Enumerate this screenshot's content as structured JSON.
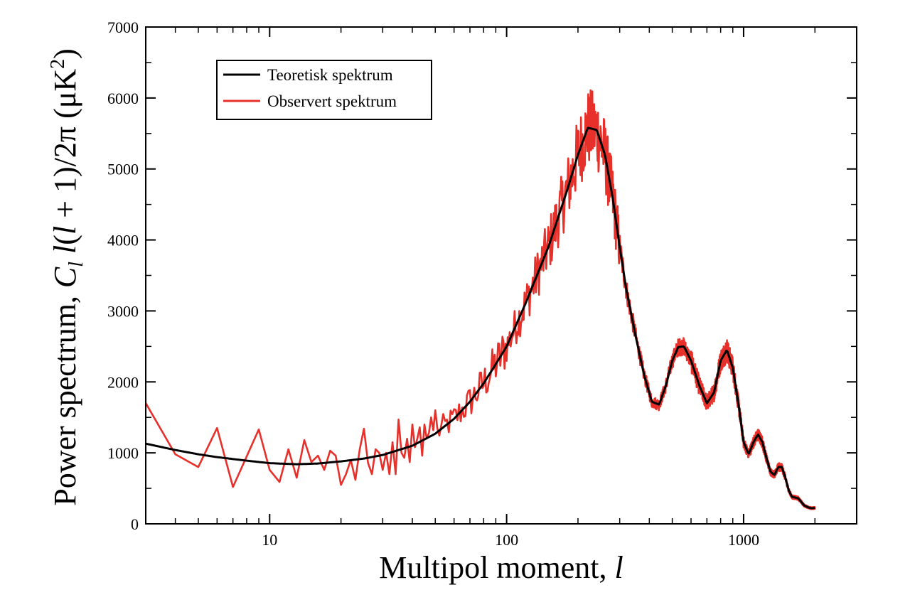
{
  "chart_data": {
    "type": "line",
    "xscale": "log",
    "xlim": [
      3,
      3000
    ],
    "ylim": [
      0,
      7000
    ],
    "xticks": [
      {
        "value": 10,
        "label": "10"
      },
      {
        "value": 100,
        "label": "100"
      },
      {
        "value": 1000,
        "label": "1000"
      }
    ],
    "yticks": [
      {
        "value": 0,
        "label": "0"
      },
      {
        "value": 1000,
        "label": "1000"
      },
      {
        "value": 2000,
        "label": "2000"
      },
      {
        "value": 3000,
        "label": "3000"
      },
      {
        "value": 4000,
        "label": "4000"
      },
      {
        "value": 5000,
        "label": "5000"
      },
      {
        "value": 6000,
        "label": "6000"
      },
      {
        "value": 7000,
        "label": "7000"
      }
    ],
    "xlabel": "Multipol moment, l",
    "xlabel_parts": {
      "text": "Multipol moment, ",
      "italic": "l"
    },
    "ylabel": "Power spectrum, C_l l(l + 1)/2π (μK²)",
    "ylabel_parts": {
      "lead": "Power spectrum, ",
      "C": "C",
      "sub": "l",
      "mid1": "l",
      "mid2": "(",
      "mid3": "l",
      "tail": " + 1)/2π (μK",
      "sup": "2",
      "close": ")"
    },
    "legend_position": "top-left",
    "grid": false,
    "series": [
      {
        "name": "Teoretisk spektrum",
        "color": "#000000",
        "x": [
          3,
          4,
          5,
          6,
          8,
          10,
          13,
          16,
          20,
          25,
          30,
          40,
          50,
          60,
          70,
          80,
          90,
          100,
          120,
          150,
          180,
          200,
          220,
          240,
          260,
          280,
          300,
          320,
          350,
          380,
          410,
          440,
          470,
          500,
          530,
          560,
          600,
          650,
          700,
          750,
          800,
          850,
          900,
          950,
          1000,
          1050,
          1100,
          1150,
          1200,
          1250,
          1300,
          1350,
          1400,
          1450,
          1500,
          1550,
          1600,
          1650,
          1700,
          1750,
          1800,
          1850,
          1900,
          1950,
          2000
        ],
        "y": [
          1130,
          1040,
          980,
          940,
          890,
          855,
          840,
          850,
          880,
          920,
          970,
          1100,
          1270,
          1480,
          1720,
          1980,
          2250,
          2500,
          3100,
          3900,
          4700,
          5200,
          5580,
          5550,
          5200,
          4600,
          3900,
          3300,
          2650,
          2100,
          1720,
          1680,
          1950,
          2300,
          2490,
          2500,
          2300,
          1950,
          1700,
          1850,
          2300,
          2450,
          2200,
          1700,
          1150,
          980,
          1150,
          1260,
          1150,
          920,
          730,
          690,
          800,
          800,
          650,
          470,
          380,
          370,
          360,
          310,
          260,
          240,
          225,
          220,
          225
        ]
      },
      {
        "name": "Observert spektrum",
        "color": "#e8302a",
        "x": [
          3,
          4,
          5,
          6,
          7,
          8,
          9,
          10,
          11,
          12,
          13,
          14,
          15,
          16,
          17,
          18,
          19,
          20,
          21,
          22,
          23,
          24,
          25,
          26,
          27,
          28,
          29,
          30,
          31,
          32,
          33,
          34,
          35,
          36,
          37,
          38,
          39,
          40,
          41,
          42,
          43,
          44,
          45,
          46,
          47,
          48,
          49,
          50
        ],
        "y": [
          1700,
          980,
          800,
          1350,
          520,
          950,
          1330,
          760,
          590,
          1050,
          650,
          1180,
          870,
          960,
          760,
          1030,
          960,
          550,
          700,
          900,
          620,
          1050,
          1340,
          860,
          700,
          1050,
          1000,
          760,
          1000,
          700,
          1150,
          700,
          1470,
          1000,
          930,
          1200,
          870,
          1400,
          1080,
          1200,
          1360,
          960,
          1400,
          1200,
          1280,
          1500,
          1320,
          1600
        ]
      }
    ]
  }
}
